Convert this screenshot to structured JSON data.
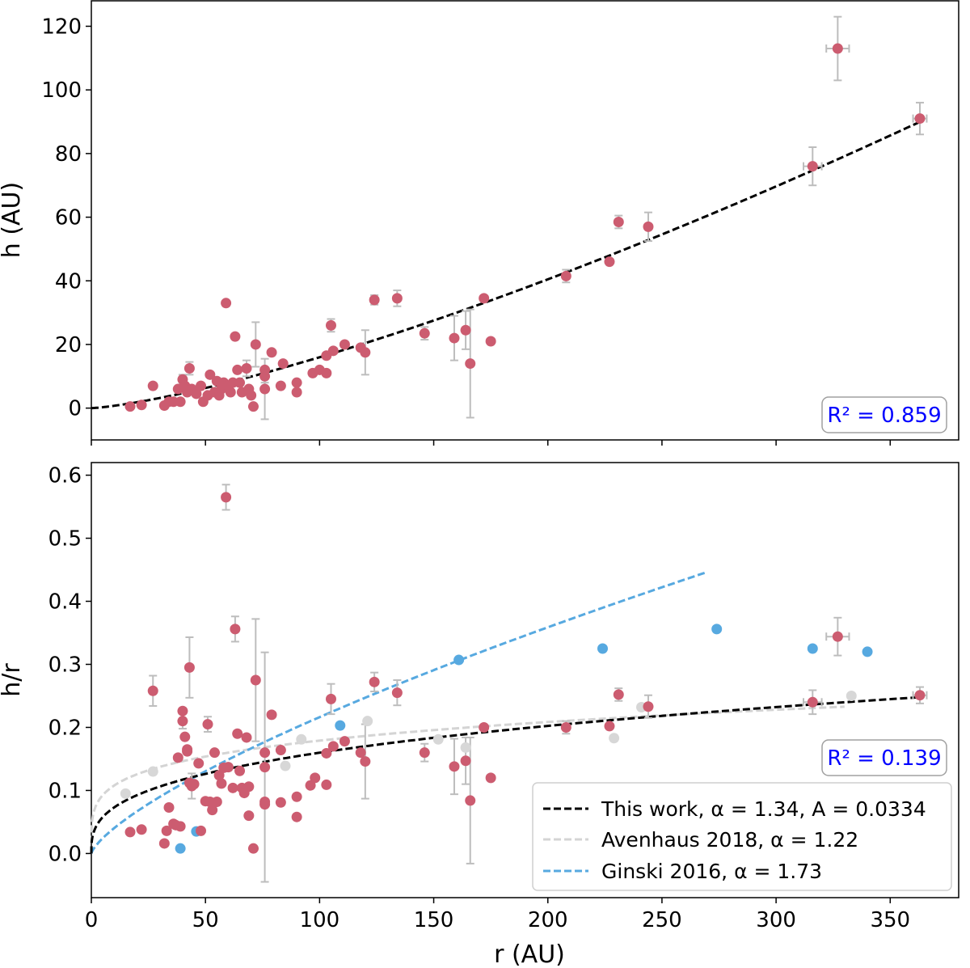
{
  "colors": {
    "data": "#cc5c70",
    "ginski_pts": "#57a9e0",
    "aven_pts": "#d7d7d7",
    "err": "#bdbdbd",
    "fit": "#000000",
    "avenhaus": "#d4d4d4",
    "ginski": "#57a9e0",
    "r2_text": "#0000ff",
    "r2_box": "#a0a0a0"
  },
  "chart_data": [
    {
      "id": "top",
      "type": "scatter",
      "xlabel": "",
      "ylabel": "h (AU)",
      "xlim": [
        0,
        380
      ],
      "ylim": [
        -10,
        128
      ],
      "yticks": [
        0,
        20,
        40,
        60,
        80,
        100,
        120
      ],
      "xticks": [
        0,
        50,
        100,
        150,
        200,
        250,
        300,
        350
      ],
      "show_xtick_labels": false,
      "r2_label": "R² = 0.859",
      "fit_curve": {
        "A": 0.0334,
        "alpha": 1.34,
        "x_range": [
          0,
          363
        ]
      },
      "series": [
        {
          "points": [
            [
              17,
              0.5,
              0,
              0
            ],
            [
              22,
              1,
              0,
              0
            ],
            [
              27,
              7,
              0,
              0
            ],
            [
              32,
              0.8,
              0,
              0
            ],
            [
              34,
              2,
              0,
              0
            ],
            [
              36,
              2,
              0,
              0
            ],
            [
              38,
              6,
              0,
              0
            ],
            [
              39,
              2,
              0,
              0
            ],
            [
              40,
              9,
              0,
              1.5
            ],
            [
              41,
              7,
              0,
              0
            ],
            [
              42,
              5,
              0,
              0
            ],
            [
              43,
              12.5,
              0,
              2
            ],
            [
              44,
              6,
              0,
              0
            ],
            [
              46,
              4.5,
              0,
              0
            ],
            [
              48,
              7,
              0,
              0
            ],
            [
              49,
              2,
              0,
              0
            ],
            [
              51,
              4,
              0,
              0
            ],
            [
              52,
              10.5,
              0,
              0
            ],
            [
              54,
              5,
              0,
              0
            ],
            [
              55,
              8.5,
              0,
              0
            ],
            [
              56,
              4,
              0,
              0
            ],
            [
              57,
              6,
              0,
              0
            ],
            [
              58,
              8,
              0,
              0
            ],
            [
              59,
              33,
              0,
              0
            ],
            [
              60,
              7,
              0,
              0
            ],
            [
              61,
              5,
              0,
              0
            ],
            [
              62,
              8,
              0,
              0
            ],
            [
              63,
              22.5,
              0,
              0
            ],
            [
              64,
              12,
              0,
              0
            ],
            [
              65,
              8,
              0,
              0
            ],
            [
              66,
              5,
              0,
              0
            ],
            [
              68,
              12.5,
              0,
              2.5
            ],
            [
              69,
              6,
              0,
              0
            ],
            [
              70,
              4,
              0,
              0
            ],
            [
              71,
              0.5,
              0,
              0
            ],
            [
              72,
              20,
              0,
              7
            ],
            [
              76,
              10,
              0,
              2
            ],
            [
              76,
              12,
              0,
              0
            ],
            [
              76,
              6,
              0,
              9.5
            ],
            [
              79,
              17.5,
              0,
              0
            ],
            [
              83,
              7,
              0,
              0
            ],
            [
              84,
              14,
              0,
              0
            ],
            [
              90,
              5,
              0,
              0
            ],
            [
              90,
              8,
              0,
              0
            ],
            [
              97,
              11,
              0,
              0
            ],
            [
              100,
              12,
              0,
              0
            ],
            [
              103,
              11,
              0,
              0
            ],
            [
              103,
              16.5,
              0,
              0
            ],
            [
              105,
              26,
              0,
              2
            ],
            [
              106,
              18,
              0,
              0
            ],
            [
              111,
              20,
              0,
              0
            ],
            [
              118,
              19,
              0,
              0
            ],
            [
              120,
              17.5,
              0,
              7
            ],
            [
              124,
              34,
              0,
              1.5
            ],
            [
              134,
              34.5,
              0,
              2.5
            ],
            [
              146,
              23.5,
              0,
              2
            ],
            [
              159,
              22,
              0,
              7
            ],
            [
              164,
              24.5,
              0,
              6
            ],
            [
              166,
              14,
              0,
              17
            ],
            [
              172,
              34.5,
              0,
              0
            ],
            [
              175,
              21,
              0,
              0
            ],
            [
              208,
              41.5,
              0,
              2
            ],
            [
              227,
              46,
              0,
              0
            ],
            [
              231,
              58.5,
              0,
              2
            ],
            [
              244,
              57,
              0,
              4.5
            ],
            [
              316,
              76,
              4,
              6
            ],
            [
              327,
              113,
              5,
              10
            ],
            [
              363,
              91,
              3,
              5
            ]
          ]
        }
      ]
    },
    {
      "id": "bottom",
      "type": "scatter",
      "xlabel": "r (AU)",
      "ylabel": "h/r",
      "xlim": [
        0,
        380
      ],
      "ylim": [
        -0.07,
        0.62
      ],
      "yticks": [
        0.0,
        0.1,
        0.2,
        0.3,
        0.4,
        0.5,
        0.6
      ],
      "ytick_labels": [
        "0.0",
        "0.1",
        "0.2",
        "0.3",
        "0.4",
        "0.5",
        "0.6"
      ],
      "xticks": [
        0,
        50,
        100,
        150,
        200,
        250,
        300,
        350
      ],
      "xtick_labels": [
        "0",
        "50",
        "100",
        "150",
        "200",
        "250",
        "300",
        "350"
      ],
      "r2_label": "R² = 0.139",
      "legend_position": "bottom-right",
      "curves": [
        {
          "name": "This work, α = 1.34, A = 0.0334",
          "A": 0.0334,
          "alpha": 1.34,
          "x_range": [
            0,
            363
          ],
          "color": "#000000"
        },
        {
          "name": "Avenhaus 2018, α = 1.22",
          "A": 0.065,
          "alpha": 1.22,
          "x_range": [
            0,
            330
          ],
          "color": "#d4d4d4"
        },
        {
          "name": "Ginski 2016, α = 1.73",
          "A": 0.0075,
          "alpha": 1.73,
          "x_range": [
            0,
            270
          ],
          "color": "#57a9e0"
        }
      ],
      "series": [
        {
          "role": "this_work",
          "points": [
            [
              17,
              0.034,
              0,
              0
            ],
            [
              22,
              0.038,
              0,
              0
            ],
            [
              27,
              0.258,
              0,
              0.024
            ],
            [
              32,
              0.016,
              0,
              0
            ],
            [
              33,
              0.036,
              0,
              0
            ],
            [
              34,
              0.073,
              0,
              0
            ],
            [
              36,
              0.047,
              0,
              0
            ],
            [
              37,
              0.045,
              0,
              0
            ],
            [
              38,
              0.152,
              0,
              0
            ],
            [
              39,
              0.043,
              0,
              0
            ],
            [
              40,
              0.226,
              0,
              0
            ],
            [
              40,
              0.21,
              0,
              0.012
            ],
            [
              41,
              0.185,
              0,
              0
            ],
            [
              42,
              0.165,
              0,
              0
            ],
            [
              42,
              0.162,
              0,
              0
            ],
            [
              43,
              0.295,
              0,
              0.048
            ],
            [
              43,
              0.112,
              0,
              0
            ],
            [
              44,
              0.107,
              0,
              0.02
            ],
            [
              45,
              0.11,
              0,
              0
            ],
            [
              47,
              0.143,
              0,
              0
            ],
            [
              48,
              0.036,
              0,
              0
            ],
            [
              50,
              0.083,
              0,
              0
            ],
            [
              51,
              0.205,
              0,
              0.012
            ],
            [
              52,
              0.082,
              0,
              0
            ],
            [
              53,
              0.069,
              0,
              0
            ],
            [
              54,
              0.16,
              0,
              0
            ],
            [
              55,
              0.082,
              0,
              0
            ],
            [
              56,
              0.124,
              0,
              0
            ],
            [
              57,
              0.111,
              0,
              0
            ],
            [
              58,
              0.136,
              0,
              0
            ],
            [
              59,
              0.565,
              0,
              0.02
            ],
            [
              60,
              0.137,
              0,
              0
            ],
            [
              62,
              0.104,
              0,
              0
            ],
            [
              63,
              0.356,
              0,
              0.02
            ],
            [
              64,
              0.19,
              0,
              0
            ],
            [
              65,
              0.131,
              0,
              0
            ],
            [
              66,
              0.104,
              0,
              0
            ],
            [
              67,
              0.096,
              0,
              0
            ],
            [
              68,
              0.184,
              0,
              0
            ],
            [
              69,
              0.06,
              0,
              0
            ],
            [
              69,
              0.106,
              0,
              0
            ],
            [
              71,
              0.008,
              0,
              0
            ],
            [
              72,
              0.275,
              0,
              0.097
            ],
            [
              76,
              0.137,
              0,
              0.182
            ],
            [
              76,
              0.082,
              0,
              0
            ],
            [
              76,
              0.078,
              0,
              0
            ],
            [
              76,
              0.16,
              0,
              0
            ],
            [
              79,
              0.22,
              0,
              0
            ],
            [
              83,
              0.164,
              0,
              0
            ],
            [
              83,
              0.081,
              0,
              0
            ],
            [
              90,
              0.058,
              0,
              0
            ],
            [
              90,
              0.09,
              0,
              0
            ],
            [
              96,
              0.108,
              0,
              0
            ],
            [
              98,
              0.12,
              0,
              0
            ],
            [
              103,
              0.109,
              0,
              0
            ],
            [
              103,
              0.159,
              0,
              0
            ],
            [
              105,
              0.245,
              0,
              0.024
            ],
            [
              106,
              0.17,
              0,
              0
            ],
            [
              111,
              0.178,
              0,
              0
            ],
            [
              118,
              0.16,
              0,
              0
            ],
            [
              120,
              0.146,
              0,
              0.059
            ],
            [
              124,
              0.272,
              0,
              0.015
            ],
            [
              134,
              0.255,
              0,
              0.02
            ],
            [
              146,
              0.16,
              0,
              0.014
            ],
            [
              159,
              0.138,
              0,
              0.044
            ],
            [
              164,
              0.147,
              0,
              0.037
            ],
            [
              166,
              0.084,
              0,
              0.1
            ],
            [
              172,
              0.2,
              0,
              0
            ],
            [
              175,
              0.12,
              0,
              0
            ],
            [
              208,
              0.2,
              0,
              0.01
            ],
            [
              227,
              0.202,
              0,
              0
            ],
            [
              231,
              0.252,
              0,
              0.01
            ],
            [
              244,
              0.233,
              0,
              0.018
            ],
            [
              316,
              0.24,
              4,
              0.019
            ],
            [
              327,
              0.344,
              5,
              0.03
            ],
            [
              363,
              0.251,
              3,
              0.013
            ]
          ]
        },
        {
          "role": "ginski",
          "points": [
            [
              39,
              0.008,
              0,
              0
            ],
            [
              46,
              0.035,
              0,
              0
            ],
            [
              109,
              0.203,
              0,
              0
            ],
            [
              161,
              0.307,
              0,
              0
            ],
            [
              224,
              0.325,
              0,
              0
            ],
            [
              274,
              0.356,
              0,
              0
            ],
            [
              316,
              0.325,
              0,
              0
            ],
            [
              340,
              0.32,
              0,
              0
            ]
          ]
        },
        {
          "role": "avenhaus",
          "points": [
            [
              15,
              0.095,
              0,
              0
            ],
            [
              27,
              0.13,
              0,
              0
            ],
            [
              85,
              0.139,
              0,
              0
            ],
            [
              92,
              0.181,
              0,
              0
            ],
            [
              121,
              0.21,
              0,
              0
            ],
            [
              152,
              0.181,
              0,
              0
            ],
            [
              164,
              0.168,
              0,
              0
            ],
            [
              229,
              0.183,
              0,
              0
            ],
            [
              241,
              0.232,
              0,
              0
            ],
            [
              333,
              0.25,
              0,
              0
            ]
          ]
        }
      ]
    }
  ]
}
